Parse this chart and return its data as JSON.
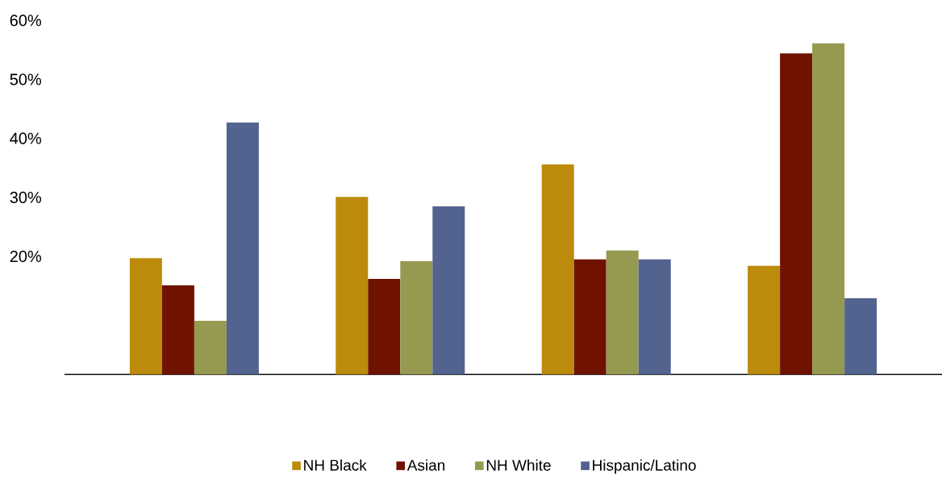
{
  "chart_data": {
    "type": "bar",
    "categories": [
      null,
      null,
      null,
      null
    ],
    "series": [
      {
        "name": "NH Black",
        "color": "#bc8b0c",
        "values": [
          19.7,
          30.1,
          35.6,
          18.4
        ]
      },
      {
        "name": "Asian",
        "color": "#6f1300",
        "values": [
          15.1,
          16.2,
          19.5,
          54.4
        ]
      },
      {
        "name": "NH White",
        "color": "#969a50",
        "values": [
          9.1,
          19.2,
          21.0,
          56.1
        ]
      },
      {
        "name": "Hispanic/Latino",
        "color": "#53638f",
        "values": [
          42.7,
          28.5,
          19.5,
          12.9
        ]
      }
    ],
    "ylim": [
      0,
      60
    ],
    "yticks": [
      {
        "value": 20,
        "label": "20%"
      },
      {
        "value": 30,
        "label": "30%"
      },
      {
        "value": 40,
        "label": "40%"
      },
      {
        "value": 50,
        "label": "50%"
      },
      {
        "value": 60,
        "label": "60%"
      }
    ],
    "legend": "bottom"
  }
}
